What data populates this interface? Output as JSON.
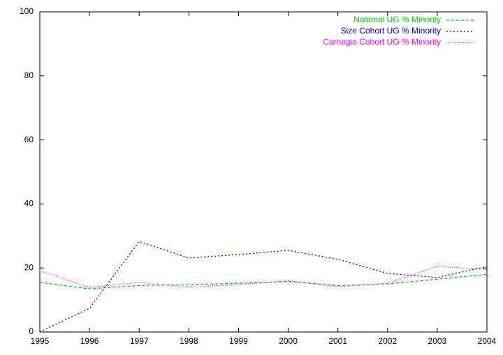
{
  "chart_data": {
    "type": "line",
    "x": [
      1995,
      1996,
      1997,
      1998,
      1999,
      2000,
      2001,
      2002,
      2003,
      2004
    ],
    "series": [
      {
        "name": "National UG % Minority",
        "color": "#00cc00",
        "dash": "4,3",
        "values": [
          15.5,
          13.5,
          14.5,
          14.8,
          15.2,
          15.8,
          14.5,
          15.0,
          16.5,
          18.0
        ]
      },
      {
        "name": "Size Cohort UG % Minority",
        "color": "#0000cc",
        "dash": "2,3",
        "values": [
          0,
          7.4,
          28.3,
          23.1,
          24.2,
          25.5,
          22.7,
          18.3,
          17.0,
          20.5
        ]
      },
      {
        "name": "Carnegie Cohort UG % Minority",
        "color": "#ff00ff",
        "dash": "1,2",
        "values": [
          19.2,
          13.9,
          15.5,
          14.0,
          14.8,
          16.0,
          14.2,
          15.2,
          20.5,
          19.5
        ]
      }
    ],
    "xlim": [
      1995,
      2004
    ],
    "xticks": [
      1995,
      1996,
      1997,
      1998,
      1999,
      2000,
      2001,
      2002,
      2003,
      2004
    ],
    "ylim": [
      0,
      100
    ],
    "yticks": [
      0,
      20,
      40,
      60,
      80,
      100
    ],
    "legend": "top-right"
  }
}
